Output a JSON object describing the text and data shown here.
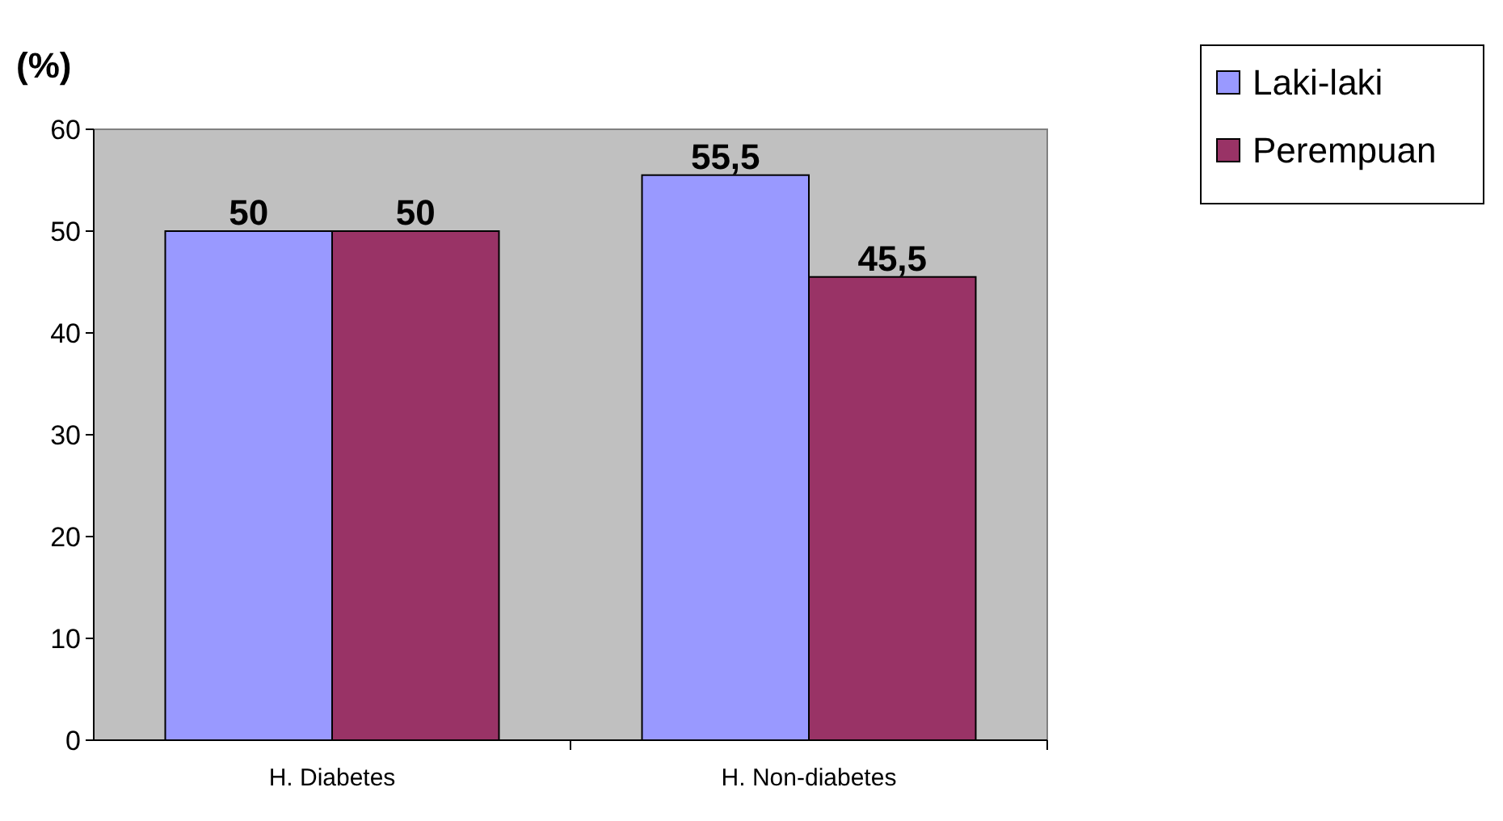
{
  "chart_data": {
    "type": "bar",
    "ylabel": "(%)",
    "categories": [
      "H. Diabetes",
      "H. Non-diabetes"
    ],
    "series": [
      {
        "name": "Laki-laki",
        "color": "#9999ff",
        "values": [
          50,
          55.5
        ],
        "value_labels": [
          "50",
          "55,5"
        ]
      },
      {
        "name": "Perempuan",
        "color": "#993366",
        "values": [
          50,
          45.5
        ],
        "value_labels": [
          "50",
          "45,5"
        ]
      }
    ],
    "ylim": [
      0,
      60
    ],
    "yticks": [
      0,
      10,
      20,
      30,
      40,
      50,
      60
    ],
    "grid": false,
    "legend": "right"
  }
}
